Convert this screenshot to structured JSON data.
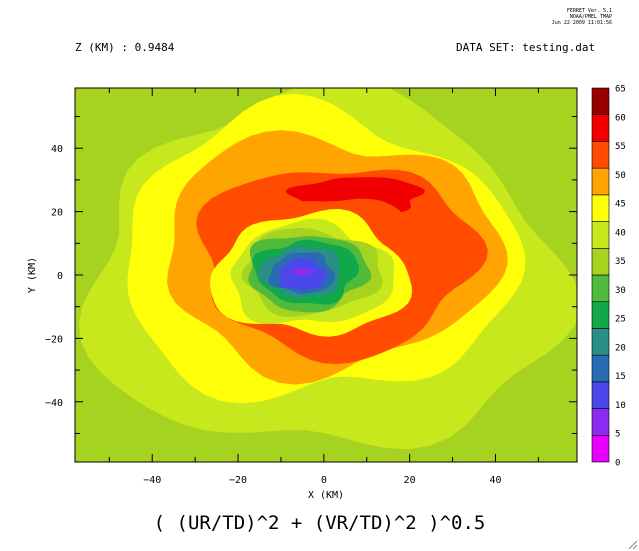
{
  "header": {
    "left": "Z (KM) : 0.9484",
    "right": "DATA SET: testing.dat",
    "stamp": [
      "FERRET Ver. 5.1",
      "NOAA/PMEL TMAP",
      "Jun 22 2009 11:01:56"
    ]
  },
  "plot_title": "( (UR/TD)^2 + (VR/TD)^2 )^0.5",
  "chart_data": {
    "type": "heatmap",
    "xlabel": "X (KM)",
    "ylabel": "Y (KM)",
    "xlim": [
      -58,
      59
    ],
    "ylim": [
      -59,
      59
    ],
    "x_ticks": [
      -40,
      -20,
      0,
      20,
      40
    ],
    "y_ticks": [
      -40,
      -20,
      0,
      20,
      40
    ],
    "x_tick_labels": [
      "−40",
      "−20",
      "0",
      "20",
      "40"
    ],
    "y_tick_labels": [
      "−40",
      "−20",
      "0",
      "20",
      "40"
    ],
    "colorbar": {
      "levels": [
        0,
        5,
        10,
        15,
        20,
        25,
        30,
        35,
        40,
        45,
        50,
        55,
        60,
        65
      ],
      "labels": [
        "0",
        "5",
        "10",
        "15",
        "20",
        "25",
        "30",
        "35",
        "40",
        "45",
        "50",
        "55",
        "60",
        "65"
      ],
      "colors": [
        "#e800ff",
        "#8a2bf2",
        "#4a48ea",
        "#2a6cb4",
        "#2a8f86",
        "#11a84a",
        "#4fba3c",
        "#a6d220",
        "#c8e81e",
        "#ffff0a",
        "#ffa400",
        "#ff4c00",
        "#f00000",
        "#980000"
      ]
    },
    "regions": [
      {
        "level": 35,
        "center": [
          0,
          0
        ],
        "rx": 80,
        "ry": 80
      },
      {
        "level": 40,
        "center": [
          0,
          0
        ],
        "rx": 55,
        "ry": 56
      },
      {
        "level": 45,
        "center": [
          -2,
          6
        ],
        "rx": 46,
        "ry": 45
      },
      {
        "level": 50,
        "center": [
          1,
          7
        ],
        "rx": 39,
        "ry": 37
      },
      {
        "level": 55,
        "center": [
          3,
          5
        ],
        "rx": 32,
        "ry": 30
      },
      {
        "level": 60,
        "center": [
          8,
          25
        ],
        "rx": 15,
        "ry": 6
      },
      {
        "level": 55,
        "center": [
          2,
          7
        ],
        "rx": 22,
        "ry": 17
      },
      {
        "level": 45,
        "center": [
          -3,
          0
        ],
        "rx": 23,
        "ry": 19
      },
      {
        "level": 40,
        "center": [
          -3,
          0
        ],
        "rx": 19,
        "ry": 16
      },
      {
        "level": 35,
        "center": [
          -3,
          1
        ],
        "rx": 16,
        "ry": 13.5
      },
      {
        "level": 30,
        "center": [
          -4,
          1
        ],
        "rx": 14,
        "ry": 12
      },
      {
        "level": 25,
        "center": [
          -4,
          1
        ],
        "rx": 12,
        "ry": 10
      },
      {
        "level": 20,
        "center": [
          -5,
          1
        ],
        "rx": 9.5,
        "ry": 8
      },
      {
        "level": 15,
        "center": [
          -5,
          0.5
        ],
        "rx": 7.5,
        "ry": 6.5
      },
      {
        "level": 10,
        "center": [
          -5,
          0
        ],
        "rx": 5.5,
        "ry": 5
      },
      {
        "level": 5,
        "center": [
          -5,
          1
        ],
        "rx": 2.5,
        "ry": 1.2
      }
    ]
  }
}
